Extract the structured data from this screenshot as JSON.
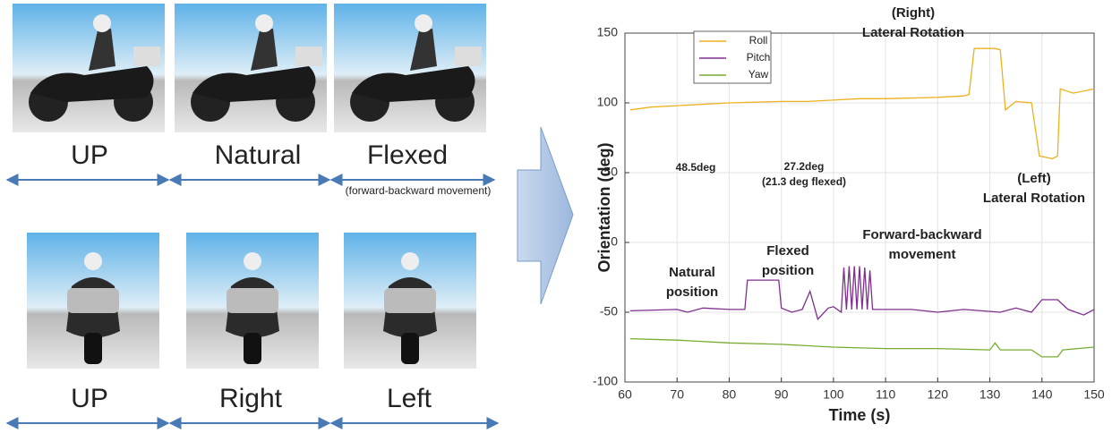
{
  "panels": {
    "top_row": {
      "labels": [
        "UP",
        "Natural",
        "Flexed"
      ],
      "note": "(forward-backward movement)"
    },
    "bottom_row": {
      "labels": [
        "UP",
        "Right",
        "Left"
      ]
    }
  },
  "chart_data": {
    "type": "line",
    "x_label": "Time (s)",
    "y_label": "Orientation (deg)",
    "xlim": [
      60,
      150
    ],
    "xticks": [
      60,
      70,
      80,
      90,
      100,
      110,
      120,
      130,
      140,
      150
    ],
    "ylim": [
      -100,
      150
    ],
    "yticks": [
      -100,
      -50,
      0,
      50,
      100,
      150
    ],
    "grid": true,
    "legend": "upper left",
    "series": [
      {
        "name": "Roll",
        "color": "#edb120",
        "x": [
          61,
          65,
          70,
          80,
          90,
          95,
          100,
          105,
          110,
          120,
          125,
          126,
          127,
          131,
          132,
          133,
          135,
          138,
          139.5,
          142,
          143,
          143.5,
          146,
          150
        ],
        "values": [
          95,
          97,
          98,
          100,
          101,
          101,
          102,
          103,
          103,
          104,
          105,
          106,
          139,
          139,
          138,
          95,
          101,
          100,
          62,
          60,
          62,
          110,
          107,
          110
        ]
      },
      {
        "name": "Pitch",
        "color": "#7e2f8e",
        "x": [
          61,
          70,
          72,
          75,
          80,
          83,
          83.5,
          89.5,
          90,
          92,
          94,
          95.5,
          97,
          99,
          100,
          101.5,
          102,
          102.5,
          103,
          103.5,
          104,
          104.5,
          105,
          105.5,
          106,
          106.5,
          107,
          107.5,
          115,
          120,
          125,
          132,
          135,
          138,
          140,
          143,
          145,
          148,
          150
        ],
        "values": [
          -49,
          -48,
          -50,
          -47,
          -48,
          -48,
          -27,
          -27,
          -47,
          -50,
          -48,
          -35,
          -55,
          -47,
          -46,
          -50,
          -18,
          -48,
          -17,
          -48,
          -17,
          -48,
          -17,
          -48,
          -18,
          -48,
          -20,
          -48,
          -48,
          -50,
          -48,
          -50,
          -47,
          -50,
          -41,
          -41,
          -48,
          -52,
          -48
        ]
      },
      {
        "name": "Yaw",
        "color": "#77ac30",
        "x": [
          61,
          70,
          80,
          90,
          100,
          110,
          120,
          130,
          131,
          132,
          138,
          140,
          143,
          144,
          150
        ],
        "values": [
          -69,
          -70,
          -72,
          -73,
          -75,
          -76,
          -76,
          -77,
          -72,
          -77,
          -77,
          -82,
          -82,
          -77,
          -75
        ]
      }
    ],
    "annotations": [
      {
        "lines": [
          "(Right)",
          "Lateral Rotation"
        ]
      },
      {
        "lines": [
          "(Left)",
          "Lateral Rotation"
        ]
      },
      {
        "lines": [
          "48.5deg"
        ]
      },
      {
        "lines": [
          "27.2deg",
          "(21.3 deg flexed)"
        ]
      },
      {
        "lines": [
          "Natural",
          "position"
        ]
      },
      {
        "lines": [
          "Flexed",
          "position"
        ]
      },
      {
        "lines": [
          "Forward-backward",
          "movement"
        ]
      }
    ]
  }
}
